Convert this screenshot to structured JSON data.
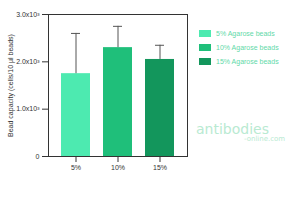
{
  "chart_data": {
    "type": "bar",
    "categories": [
      "5%",
      "10%",
      "15%"
    ],
    "series": [
      {
        "name": "5% Agarose beads",
        "color": "#4deab0",
        "values": [
          1750,
          null,
          null
        ],
        "errors": [
          850,
          null,
          null
        ]
      },
      {
        "name": "10% Agarose beads",
        "color": "#1fbf7a",
        "values": [
          null,
          2300,
          null
        ],
        "errors": [
          null,
          450,
          null
        ]
      },
      {
        "name": "15% Agarose beads",
        "color": "#13965c",
        "values": [
          null,
          null,
          2050
        ],
        "errors": [
          null,
          null,
          300
        ]
      }
    ],
    "ylabel": "Bead capacity (cells/10 µl beads)",
    "ylim": [
      0,
      3000
    ],
    "yticks": [
      0,
      {
        "value": 1000,
        "label": "1.0x10³"
      },
      {
        "value": 2000,
        "label": "2.0x10³"
      },
      {
        "value": 3000,
        "label": "3.0x10³"
      }
    ],
    "legend": "right",
    "grid": false,
    "annotations": [
      "antibodies",
      "-online.com"
    ]
  }
}
